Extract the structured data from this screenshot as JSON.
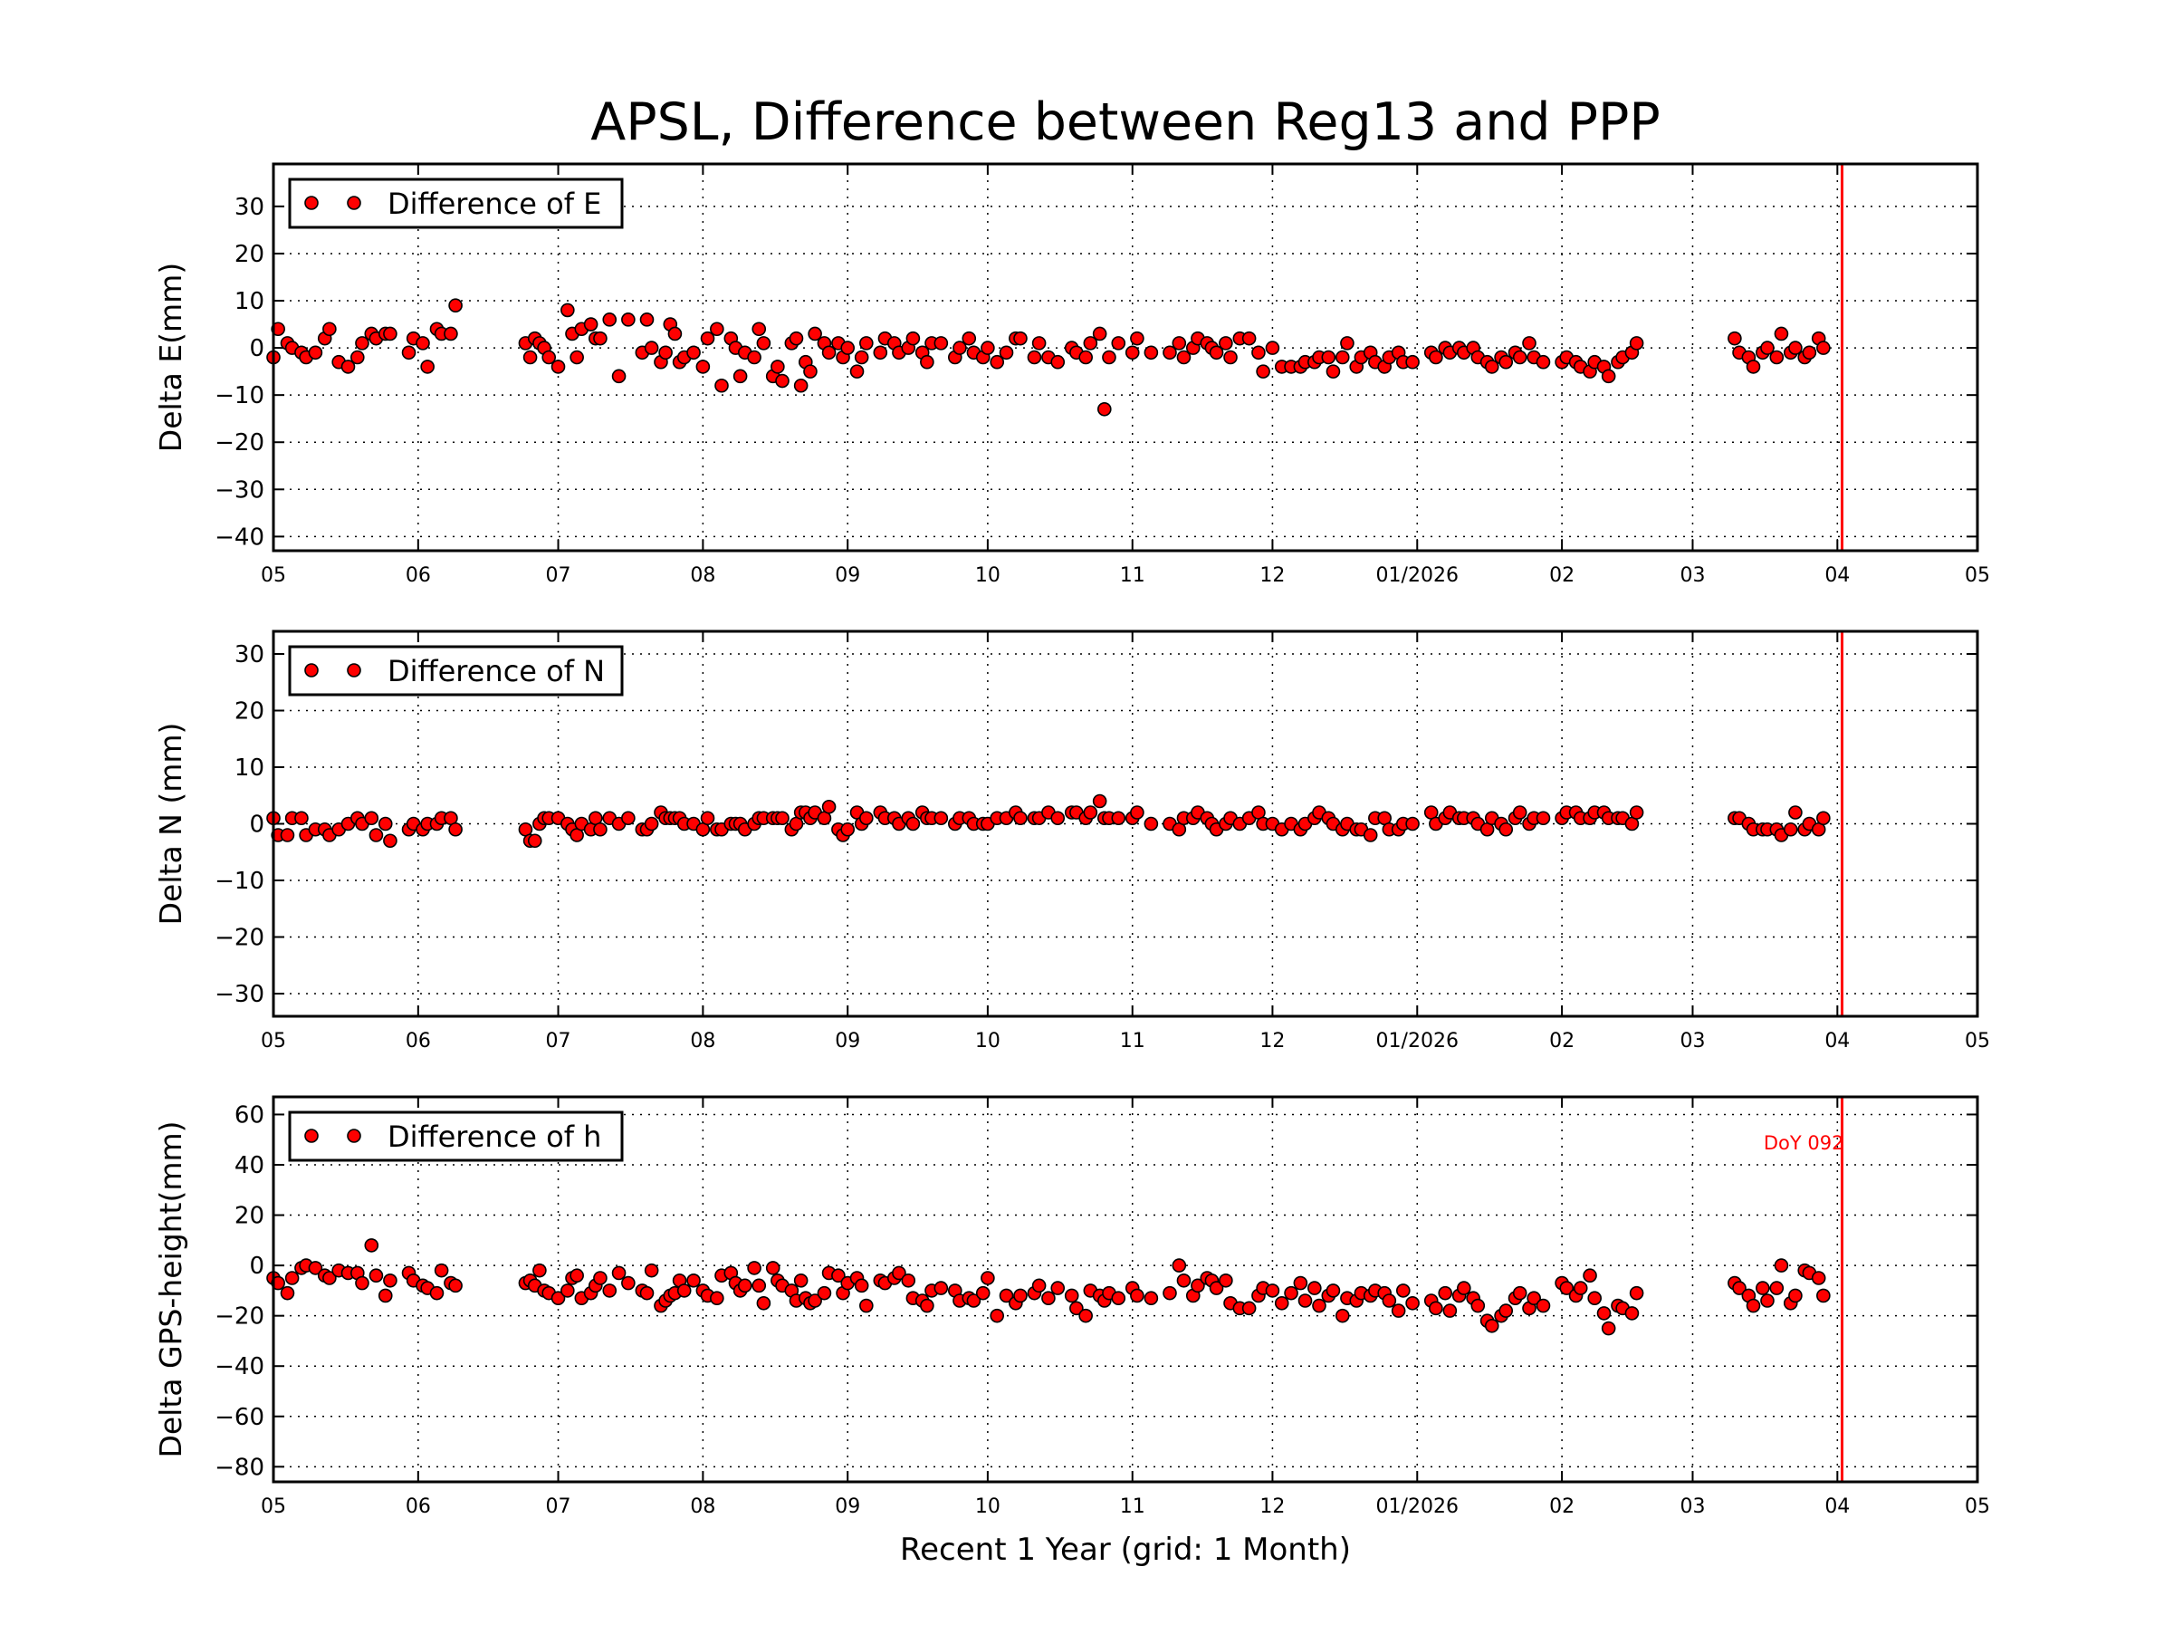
{
  "chart_data": {
    "type": "scatter",
    "title": "APSL, Difference between Reg13 and PPP",
    "xlabel": "Recent 1 Year (grid: 1 Month)",
    "xlim": [
      "2025-05-01",
      "2026-05-01"
    ],
    "x_tick_dates": [
      "2025-05-01",
      "2025-06-01",
      "2025-07-01",
      "2025-08-01",
      "2025-09-01",
      "2025-10-01",
      "2025-11-01",
      "2025-12-01",
      "2026-01-01",
      "2026-02-01",
      "2026-03-01",
      "2026-04-01",
      "2026-05-01"
    ],
    "x_tick_labels": [
      "05",
      "06",
      "07",
      "08",
      "09",
      "10",
      "11",
      "12",
      "01/2026",
      "02",
      "03",
      "04",
      "05"
    ],
    "grid": true,
    "marker_color": "#ff0000",
    "marker_edge_color": "#000000",
    "marker_line_color": "#ff0000",
    "marker_line": {
      "date": "2026-04-02",
      "label": "DoY 092"
    },
    "dates": [
      "2025-05-01",
      "2025-05-02",
      "2025-05-04",
      "2025-05-05",
      "2025-05-07",
      "2025-05-08",
      "2025-05-10",
      "2025-05-12",
      "2025-05-13",
      "2025-05-15",
      "2025-05-17",
      "2025-05-19",
      "2025-05-20",
      "2025-05-22",
      "2025-05-23",
      "2025-05-25",
      "2025-05-26",
      "2025-05-30",
      "2025-05-31",
      "2025-06-02",
      "2025-06-03",
      "2025-06-05",
      "2025-06-06",
      "2025-06-08",
      "2025-06-09",
      "2025-06-24",
      "2025-06-25",
      "2025-06-26",
      "2025-06-27",
      "2025-06-28",
      "2025-06-29",
      "2025-07-01",
      "2025-07-03",
      "2025-07-04",
      "2025-07-05",
      "2025-07-06",
      "2025-07-08",
      "2025-07-09",
      "2025-07-10",
      "2025-07-12",
      "2025-07-14",
      "2025-07-16",
      "2025-07-19",
      "2025-07-20",
      "2025-07-21",
      "2025-07-23",
      "2025-07-24",
      "2025-07-25",
      "2025-07-26",
      "2025-07-27",
      "2025-07-28",
      "2025-07-30",
      "2025-08-01",
      "2025-08-02",
      "2025-08-04",
      "2025-08-05",
      "2025-08-07",
      "2025-08-08",
      "2025-08-09",
      "2025-08-10",
      "2025-08-12",
      "2025-08-13",
      "2025-08-14",
      "2025-08-16",
      "2025-08-17",
      "2025-08-18",
      "2025-08-20",
      "2025-08-21",
      "2025-08-22",
      "2025-08-23",
      "2025-08-24",
      "2025-08-25",
      "2025-08-27",
      "2025-08-28",
      "2025-08-30",
      "2025-08-31",
      "2025-09-01",
      "2025-09-03",
      "2025-09-04",
      "2025-09-05",
      "2025-09-08",
      "2025-09-09",
      "2025-09-11",
      "2025-09-12",
      "2025-09-14",
      "2025-09-15",
      "2025-09-17",
      "2025-09-18",
      "2025-09-19",
      "2025-09-21",
      "2025-09-24",
      "2025-09-25",
      "2025-09-27",
      "2025-09-28",
      "2025-09-30",
      "2025-10-01",
      "2025-10-03",
      "2025-10-05",
      "2025-10-07",
      "2025-10-08",
      "2025-10-11",
      "2025-10-12",
      "2025-10-14",
      "2025-10-16",
      "2025-10-19",
      "2025-10-20",
      "2025-10-22",
      "2025-10-23",
      "2025-10-25",
      "2025-10-26",
      "2025-10-27",
      "2025-10-29",
      "2025-11-01",
      "2025-11-02",
      "2025-11-05",
      "2025-11-09",
      "2025-11-11",
      "2025-11-12",
      "2025-11-14",
      "2025-11-15",
      "2025-11-17",
      "2025-11-18",
      "2025-11-19",
      "2025-11-21",
      "2025-11-22",
      "2025-11-24",
      "2025-11-26",
      "2025-11-28",
      "2025-11-29",
      "2025-12-01",
      "2025-12-03",
      "2025-12-05",
      "2025-12-07",
      "2025-12-08",
      "2025-12-10",
      "2025-12-11",
      "2025-12-13",
      "2025-12-14",
      "2025-12-16",
      "2025-12-17",
      "2025-12-19",
      "2025-12-20",
      "2025-12-22",
      "2025-12-23",
      "2025-12-25",
      "2025-12-26",
      "2025-12-28",
      "2025-12-29",
      "2025-12-31",
      "2026-01-04",
      "2026-01-05",
      "2026-01-07",
      "2026-01-08",
      "2026-01-10",
      "2026-01-11",
      "2026-01-13",
      "2026-01-14",
      "2026-01-16",
      "2026-01-17",
      "2026-01-19",
      "2026-01-20",
      "2026-01-22",
      "2026-01-23",
      "2026-01-25",
      "2026-01-26",
      "2026-01-28",
      "2026-02-01",
      "2026-02-02",
      "2026-02-04",
      "2026-02-05",
      "2026-02-07",
      "2026-02-08",
      "2026-02-10",
      "2026-02-11",
      "2026-02-13",
      "2026-02-14",
      "2026-02-16",
      "2026-02-17",
      "2026-03-10",
      "2026-03-11",
      "2026-03-13",
      "2026-03-14",
      "2026-03-16",
      "2026-03-17",
      "2026-03-19",
      "2026-03-20",
      "2026-03-22",
      "2026-03-23",
      "2026-03-25",
      "2026-03-26",
      "2026-03-28",
      "2026-03-29"
    ],
    "panels": [
      {
        "ylabel": "Delta E(mm)",
        "ylim": [
          -43,
          39
        ],
        "yticks": [
          -40,
          -30,
          -20,
          -10,
          0,
          10,
          20,
          30
        ],
        "legend": "Difference of E",
        "legend_position": "top-left",
        "values": [
          -2,
          4,
          1,
          0,
          -1,
          -2,
          -1,
          2,
          4,
          -3,
          -4,
          -2,
          1,
          3,
          2,
          3,
          3,
          -1,
          2,
          1,
          -4,
          4,
          3,
          3,
          9,
          1,
          -2,
          2,
          1,
          0,
          -2,
          -4,
          8,
          3,
          -2,
          4,
          5,
          2,
          2,
          6,
          -6,
          6,
          -1,
          6,
          0,
          -3,
          -1,
          5,
          3,
          -3,
          -2,
          -1,
          -4,
          2,
          4,
          -8,
          2,
          0,
          -6,
          -1,
          -2,
          4,
          1,
          -6,
          -4,
          -7,
          1,
          2,
          -8,
          -3,
          -5,
          3,
          1,
          -1,
          1,
          -2,
          0,
          -5,
          -2,
          1,
          -1,
          2,
          1,
          -1,
          0,
          2,
          -1,
          -3,
          1,
          1,
          -2,
          0,
          2,
          -1,
          -2,
          0,
          -3,
          -1,
          2,
          2,
          -2,
          1,
          -2,
          -3,
          0,
          -1,
          -2,
          1,
          3,
          -13,
          -2,
          1,
          -1,
          2,
          -1,
          -1,
          1,
          -2,
          0,
          2,
          1,
          0,
          -1,
          1,
          -2,
          2,
          2,
          -1,
          -5,
          0,
          -4,
          -4,
          -4,
          -3,
          -3,
          -2,
          -2,
          -5,
          -2,
          1,
          -4,
          -2,
          -1,
          -3,
          -4,
          -2,
          -1,
          -3,
          -3,
          -1,
          -2,
          0,
          -1,
          0,
          -1,
          0,
          -2,
          -3,
          -4,
          -2,
          -3,
          -1,
          -2,
          1,
          -2,
          -3,
          -3,
          -2,
          -3,
          -4,
          -5,
          -3,
          -4,
          -6,
          -3,
          -2,
          -1,
          1,
          2,
          -1,
          -2,
          -4,
          -1,
          0,
          -2,
          3,
          -1,
          0,
          -2,
          -1,
          2,
          0
        ]
      },
      {
        "ylabel": "Delta N (mm)",
        "ylim": [
          -34,
          34
        ],
        "yticks": [
          -30,
          -20,
          -10,
          0,
          10,
          20,
          30
        ],
        "legend": "Difference of N",
        "legend_position": "top-left",
        "values": [
          1,
          -2,
          -2,
          1,
          1,
          -2,
          -1,
          -1,
          -2,
          -1,
          0,
          1,
          0,
          1,
          -2,
          0,
          -3,
          -1,
          0,
          -1,
          0,
          0,
          1,
          1,
          -1,
          -1,
          -3,
          -3,
          0,
          1,
          1,
          1,
          0,
          -1,
          -2,
          0,
          -1,
          1,
          -1,
          1,
          0,
          1,
          -1,
          -1,
          0,
          2,
          1,
          1,
          1,
          1,
          0,
          0,
          -1,
          1,
          -1,
          -1,
          0,
          0,
          0,
          -1,
          0,
          1,
          1,
          1,
          1,
          1,
          -1,
          0,
          2,
          2,
          1,
          2,
          1,
          3,
          -1,
          -2,
          -1,
          2,
          0,
          1,
          2,
          1,
          1,
          0,
          1,
          0,
          2,
          1,
          1,
          1,
          0,
          1,
          1,
          0,
          0,
          0,
          1,
          1,
          2,
          1,
          1,
          1,
          2,
          1,
          2,
          2,
          1,
          2,
          4,
          1,
          1,
          1,
          1,
          2,
          0,
          0,
          -1,
          1,
          1,
          2,
          1,
          0,
          -1,
          0,
          1,
          0,
          1,
          2,
          0,
          0,
          -1,
          0,
          -1,
          0,
          1,
          2,
          1,
          0,
          -1,
          0,
          -1,
          -1,
          -2,
          1,
          1,
          -1,
          -1,
          0,
          0,
          2,
          0,
          1,
          2,
          1,
          1,
          1,
          0,
          -1,
          1,
          0,
          -1,
          1,
          2,
          0,
          1,
          1,
          1,
          2,
          2,
          1,
          1,
          2,
          2,
          1,
          1,
          1,
          0,
          2,
          1,
          1,
          0,
          -1,
          -1,
          -1,
          -1,
          -2,
          -1,
          2,
          -1,
          0,
          -1,
          1
        ]
      },
      {
        "ylabel": "Delta GPS-height(mm)",
        "ylim": [
          -86,
          67
        ],
        "yticks": [
          -80,
          -60,
          -40,
          -20,
          0,
          20,
          40,
          60
        ],
        "legend": "Difference of h",
        "legend_position": "top-left",
        "values": [
          -5,
          -7,
          -11,
          -5,
          -1,
          0,
          -1,
          -4,
          -5,
          -2,
          -3,
          -3,
          -7,
          8,
          -4,
          -12,
          -6,
          -3,
          -6,
          -8,
          -9,
          -11,
          -2,
          -7,
          -8,
          -7,
          -6,
          -8,
          -2,
          -10,
          -11,
          -13,
          -10,
          -5,
          -4,
          -13,
          -11,
          -8,
          -5,
          -10,
          -3,
          -7,
          -10,
          -11,
          -2,
          -16,
          -14,
          -12,
          -11,
          -6,
          -10,
          -6,
          -10,
          -12,
          -13,
          -4,
          -3,
          -7,
          -10,
          -8,
          -1,
          -8,
          -15,
          -1,
          -6,
          -8,
          -10,
          -14,
          -6,
          -13,
          -15,
          -14,
          -11,
          -3,
          -4,
          -11,
          -7,
          -5,
          -8,
          -16,
          -6,
          -7,
          -5,
          -3,
          -6,
          -13,
          -14,
          -16,
          -10,
          -9,
          -10,
          -14,
          -13,
          -14,
          -11,
          -5,
          -20,
          -12,
          -15,
          -12,
          -11,
          -8,
          -13,
          -9,
          -12,
          -17,
          -20,
          -10,
          -12,
          -14,
          -11,
          -13,
          -9,
          -12,
          -13,
          -11,
          0,
          -6,
          -12,
          -8,
          -5,
          -6,
          -9,
          -6,
          -15,
          -17,
          -17,
          -12,
          -9,
          -10,
          -15,
          -11,
          -7,
          -14,
          -9,
          -16,
          -12,
          -10,
          -20,
          -13,
          -14,
          -11,
          -12,
          -10,
          -11,
          -14,
          -18,
          -10,
          -15,
          -14,
          -17,
          -11,
          -18,
          -12,
          -9,
          -13,
          -16,
          -22,
          -24,
          -20,
          -18,
          -13,
          -11,
          -17,
          -13,
          -16,
          -7,
          -9,
          -12,
          -9,
          -4,
          -13,
          -19,
          -25,
          -16,
          -17,
          -19,
          -11,
          -7,
          -9,
          -12,
          -16,
          -9,
          -14,
          -9,
          0,
          -15,
          -12,
          -2,
          -3,
          -5,
          -12
        ]
      }
    ]
  }
}
